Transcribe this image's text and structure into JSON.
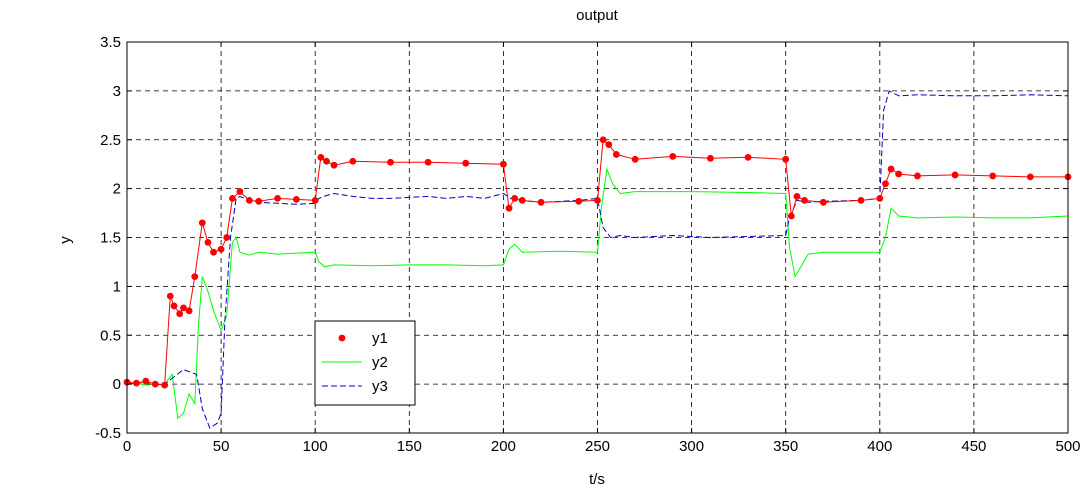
{
  "chart_data": {
    "type": "line",
    "title": "output",
    "xlabel": "t/s",
    "ylabel": "y",
    "xlim": [
      0,
      500
    ],
    "ylim": [
      -0.5,
      3.5
    ],
    "grid": true,
    "legend_position": "bottom-left",
    "xticks": [
      "0",
      "50",
      "100",
      "150",
      "200",
      "250",
      "300",
      "350",
      "400",
      "450",
      "500"
    ],
    "yticks": [
      "-0.5",
      "0",
      "0.5",
      "1",
      "1.5",
      "2",
      "2.5",
      "3",
      "3.5"
    ],
    "series": [
      {
        "name": "y1",
        "color": "#ff0000",
        "style": "markers",
        "x": [
          0,
          5,
          10,
          15,
          20,
          23,
          25,
          28,
          30,
          33,
          36,
          40,
          43,
          46,
          50,
          53,
          56,
          60,
          65,
          70,
          80,
          90,
          100,
          103,
          106,
          110,
          120,
          140,
          160,
          180,
          200,
          203,
          206,
          210,
          220,
          240,
          250,
          253,
          256,
          260,
          270,
          290,
          310,
          330,
          350,
          353,
          356,
          360,
          370,
          390,
          400,
          403,
          406,
          410,
          420,
          440,
          460,
          480,
          500
        ],
        "y": [
          0.02,
          0.01,
          0.03,
          0.0,
          -0.01,
          0.9,
          0.8,
          0.72,
          0.78,
          0.75,
          1.1,
          1.65,
          1.45,
          1.35,
          1.38,
          1.5,
          1.9,
          1.97,
          1.88,
          1.87,
          1.9,
          1.89,
          1.88,
          2.32,
          2.28,
          2.24,
          2.28,
          2.27,
          2.27,
          2.26,
          2.25,
          1.8,
          1.9,
          1.88,
          1.86,
          1.87,
          1.88,
          2.5,
          2.45,
          2.35,
          2.3,
          2.33,
          2.31,
          2.32,
          2.3,
          1.72,
          1.92,
          1.88,
          1.86,
          1.88,
          1.9,
          2.05,
          2.2,
          2.15,
          2.13,
          2.14,
          2.13,
          2.12,
          2.12
        ]
      },
      {
        "name": "y2",
        "color": "#00ff00",
        "style": "line",
        "x": [
          0,
          5,
          10,
          15,
          20,
          24,
          27,
          30,
          33,
          36,
          38,
          40,
          43,
          46,
          50,
          53,
          56,
          58,
          60,
          65,
          70,
          80,
          90,
          100,
          102,
          105,
          110,
          130,
          150,
          170,
          190,
          200,
          203,
          206,
          210,
          230,
          250,
          252,
          255,
          258,
          262,
          270,
          300,
          330,
          350,
          352,
          355,
          358,
          362,
          370,
          390,
          400,
          403,
          406,
          410,
          420,
          440,
          460,
          480,
          500
        ],
        "y": [
          0.0,
          0.01,
          -0.01,
          0.0,
          0.0,
          0.1,
          -0.35,
          -0.3,
          -0.1,
          -0.2,
          0.6,
          1.1,
          0.95,
          0.75,
          0.55,
          0.7,
          1.45,
          1.5,
          1.35,
          1.32,
          1.35,
          1.33,
          1.34,
          1.35,
          1.25,
          1.2,
          1.22,
          1.21,
          1.22,
          1.22,
          1.21,
          1.22,
          1.38,
          1.43,
          1.35,
          1.36,
          1.35,
          1.8,
          2.2,
          2.05,
          1.95,
          1.97,
          1.97,
          1.96,
          1.95,
          1.4,
          1.1,
          1.2,
          1.33,
          1.35,
          1.35,
          1.35,
          1.5,
          1.8,
          1.72,
          1.7,
          1.71,
          1.7,
          1.7,
          1.72
        ]
      },
      {
        "name": "y3",
        "color": "#0000cc",
        "style": "dashed",
        "x": [
          0,
          5,
          10,
          15,
          20,
          30,
          34,
          37,
          40,
          44,
          48,
          50,
          52,
          55,
          58,
          60,
          65,
          70,
          80,
          90,
          100,
          102,
          106,
          110,
          120,
          130,
          140,
          150,
          160,
          170,
          180,
          190,
          200,
          204,
          208,
          220,
          240,
          250,
          253,
          257,
          262,
          270,
          290,
          310,
          330,
          350,
          352,
          356,
          362,
          370,
          390,
          400,
          402,
          405,
          410,
          420,
          440,
          460,
          480,
          500
        ],
        "y": [
          0.0,
          0.02,
          0.01,
          -0.01,
          0.0,
          0.15,
          0.12,
          0.1,
          -0.25,
          -0.45,
          -0.4,
          -0.3,
          0.65,
          1.5,
          1.9,
          1.92,
          1.88,
          1.86,
          1.85,
          1.84,
          1.85,
          1.9,
          1.93,
          1.95,
          1.92,
          1.9,
          1.9,
          1.91,
          1.92,
          1.9,
          1.92,
          1.9,
          1.95,
          1.9,
          1.88,
          1.86,
          1.88,
          1.9,
          1.6,
          1.5,
          1.52,
          1.5,
          1.52,
          1.5,
          1.51,
          1.52,
          1.7,
          1.88,
          1.86,
          1.87,
          1.88,
          1.9,
          2.8,
          3.0,
          2.95,
          2.96,
          2.95,
          2.95,
          2.96,
          2.95
        ]
      }
    ]
  }
}
